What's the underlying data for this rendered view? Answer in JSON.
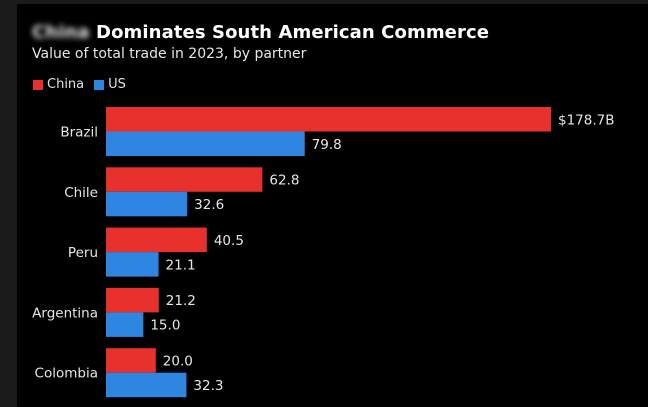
{
  "header": {
    "title_obscured_word": "China",
    "title_rest": "Dominates South American Commerce",
    "subtitle": "Value of total trade in 2023, by partner"
  },
  "legend": [
    {
      "name": "China",
      "color": "#e8302c"
    },
    {
      "name": "US",
      "color": "#2f86e0"
    }
  ],
  "chart_data": {
    "type": "bar",
    "orientation": "horizontal",
    "title": "China Dominates South American Commerce",
    "subtitle": "Value of total trade in 2023, by partner",
    "xlabel": "",
    "ylabel": "",
    "unit": "$B",
    "categories": [
      "Brazil",
      "Chile",
      "Peru",
      "Argentina",
      "Colombia"
    ],
    "series": [
      {
        "name": "China",
        "color": "#e8302c",
        "values": [
          178.7,
          62.8,
          40.5,
          21.2,
          20.0
        ],
        "labels": [
          "$178.7B",
          "62.8",
          "40.5",
          "21.2",
          "20.0"
        ]
      },
      {
        "name": "US",
        "color": "#2f86e0",
        "values": [
          79.8,
          32.6,
          21.1,
          15.0,
          32.3
        ],
        "labels": [
          "79.8",
          "32.6",
          "21.1",
          "15.0",
          "32.3"
        ]
      }
    ],
    "xlim": [
      0,
      178.7
    ],
    "grid": false,
    "legend_position": "top-left"
  }
}
